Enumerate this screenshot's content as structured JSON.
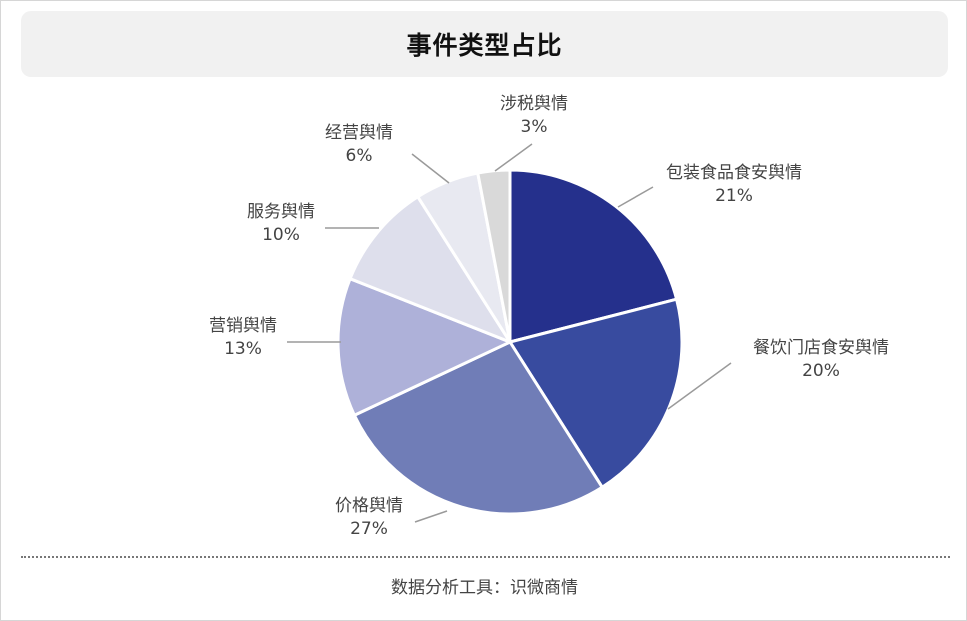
{
  "chart_data": {
    "type": "pie",
    "title": "事件类型占比",
    "slices": [
      {
        "label": "包装食品食安舆情",
        "value": 21,
        "value_label": "21%",
        "color": "#25308c"
      },
      {
        "label": "餐饮门店食安舆情",
        "value": 20,
        "value_label": "20%",
        "color": "#384b9f"
      },
      {
        "label": "价格舆情",
        "value": 27,
        "value_label": "27%",
        "color": "#707db7"
      },
      {
        "label": "营销舆情",
        "value": 13,
        "value_label": "13%",
        "color": "#aeb1d9"
      },
      {
        "label": "服务舆情",
        "value": 10,
        "value_label": "10%",
        "color": "#dedfec"
      },
      {
        "label": "经营舆情",
        "value": 6,
        "value_label": "6%",
        "color": "#e8e9f1"
      },
      {
        "label": "涉税舆情",
        "value": 3,
        "value_label": "3%",
        "color": "#d9d9d9"
      }
    ],
    "start_direction": "12 o'clock",
    "direction": "clockwise"
  },
  "footer": {
    "text": "数据分析工具：识微商情"
  }
}
